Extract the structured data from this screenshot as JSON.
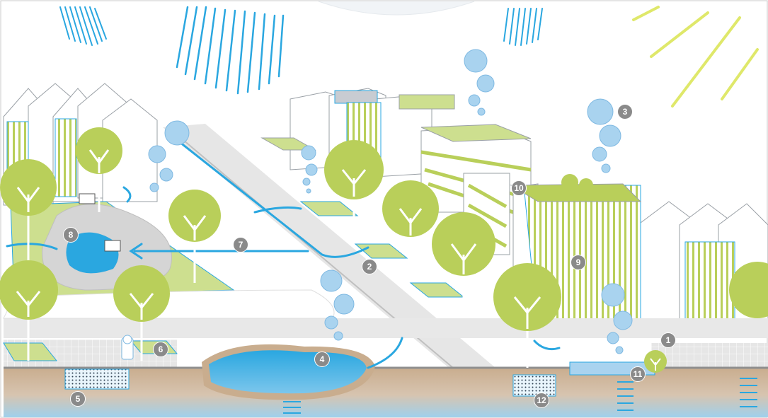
{
  "colors": {
    "water": "#2aa7e0",
    "water_light": "#a9d3ef",
    "green": "#b9cf5a",
    "green_light": "#cddf8f",
    "soil": "#c9ad8e",
    "road": "#d9d9d9",
    "sun": "#dfe86a",
    "marker": "#8a8a8a"
  },
  "markers": [
    {
      "id": "m1",
      "label": "1"
    },
    {
      "id": "m2",
      "label": "2"
    },
    {
      "id": "m3",
      "label": "3"
    },
    {
      "id": "m4",
      "label": "4"
    },
    {
      "id": "m5",
      "label": "5"
    },
    {
      "id": "m6",
      "label": "6"
    },
    {
      "id": "m7",
      "label": "7"
    },
    {
      "id": "m8",
      "label": "8"
    },
    {
      "id": "m9",
      "label": "9"
    },
    {
      "id": "m10",
      "label": "10"
    },
    {
      "id": "m11",
      "label": "11"
    },
    {
      "id": "m12",
      "label": "12"
    }
  ]
}
